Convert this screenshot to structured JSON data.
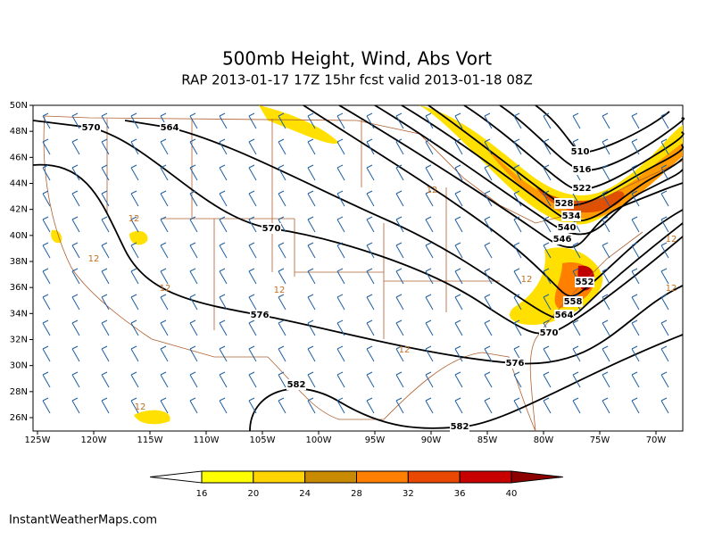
{
  "header": {
    "title": "500mb Height, Wind, Abs Vort",
    "subtitle": "RAP 2013-01-17 17Z 15hr fcst valid 2013-01-18 08Z"
  },
  "latitudes": [
    {
      "value": 50,
      "label": "50N"
    },
    {
      "value": 48,
      "label": "48N"
    },
    {
      "value": 46,
      "label": "46N"
    },
    {
      "value": 44,
      "label": "44N"
    },
    {
      "value": 42,
      "label": "42N"
    },
    {
      "value": 40,
      "label": "40N"
    },
    {
      "value": 38,
      "label": "38N"
    },
    {
      "value": 36,
      "label": "36N"
    },
    {
      "value": 34,
      "label": "34N"
    },
    {
      "value": 32,
      "label": "32N"
    },
    {
      "value": 30,
      "label": "30N"
    },
    {
      "value": 28,
      "label": "28N"
    },
    {
      "value": 26,
      "label": "26N"
    }
  ],
  "longitudes": [
    {
      "value": -125,
      "label": "125W"
    },
    {
      "value": -120,
      "label": "120W"
    },
    {
      "value": -115,
      "label": "115W"
    },
    {
      "value": -110,
      "label": "110W"
    },
    {
      "value": -105,
      "label": "105W"
    },
    {
      "value": -100,
      "label": "100W"
    },
    {
      "value": -95,
      "label": "95W"
    },
    {
      "value": -90,
      "label": "90W"
    },
    {
      "value": -85,
      "label": "85W"
    },
    {
      "value": -80,
      "label": "80W"
    },
    {
      "value": -75,
      "label": "75W"
    },
    {
      "value": -70,
      "label": "70W"
    }
  ],
  "height_labels": [
    570,
    564,
    510,
    516,
    522,
    528,
    534,
    540,
    546,
    552,
    558,
    564,
    570,
    576,
    570,
    576,
    582,
    582
  ],
  "vorticity_labels": [
    12,
    12,
    12,
    12,
    12,
    12,
    12,
    12,
    12,
    12
  ],
  "colorbar": {
    "levels": [
      16,
      20,
      24,
      28,
      32,
      36,
      40
    ],
    "colors": [
      "#ffffff",
      "#ffff00",
      "#ffd400",
      "#c88a00",
      "#ff8000",
      "#e84800",
      "#c80000",
      "#8c0000"
    ]
  },
  "footer": "InstantWeatherMaps.com"
}
